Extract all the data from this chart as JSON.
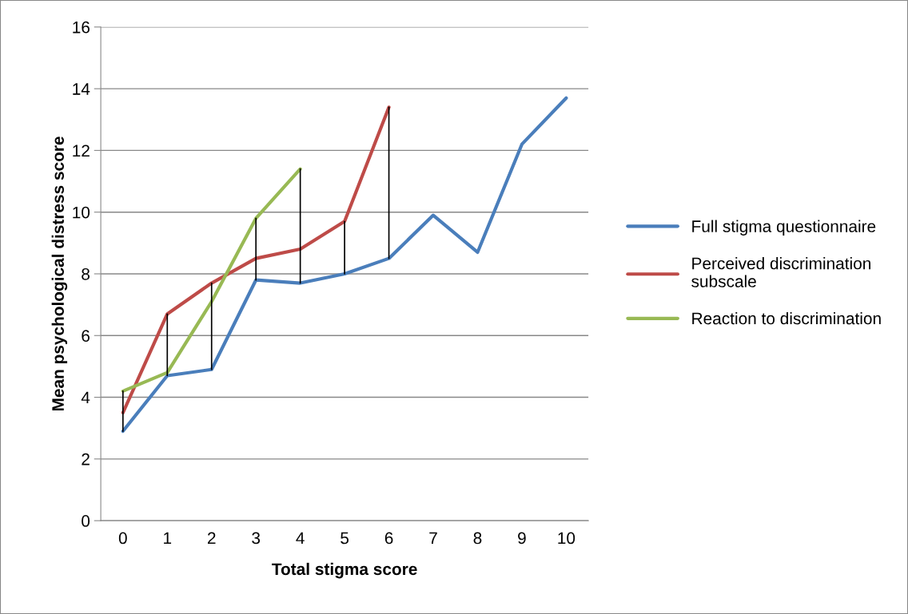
{
  "chart_data": {
    "type": "line",
    "xlabel": "Total stigma score",
    "ylabel": "Mean psychological distress score",
    "categories": [
      "0",
      "1",
      "2",
      "3",
      "4",
      "5",
      "6",
      "7",
      "8",
      "9",
      "10"
    ],
    "series": [
      {
        "name": "Full stigma questionnaire",
        "color": "#4a7ebb",
        "values": [
          2.9,
          4.7,
          4.9,
          7.8,
          7.7,
          8.0,
          8.5,
          9.9,
          8.7,
          12.2,
          13.7
        ]
      },
      {
        "name": "Perceived discrimination subscale",
        "color": "#be4b48",
        "values": [
          3.5,
          6.7,
          7.7,
          8.5,
          8.8,
          9.7,
          13.4,
          null,
          null,
          null,
          null
        ]
      },
      {
        "name": "Reaction to discrimination",
        "color": "#98b954",
        "values": [
          4.2,
          4.8,
          7.1,
          9.8,
          11.4,
          null,
          null,
          null,
          null,
          null,
          null
        ]
      },
      {
        "type": "line",
        "color": "#000000",
        "x": [
          "0",
          "0"
        ],
        "values": [
          2.9,
          4.2
        ]
      },
      {
        "type": "line",
        "color": "#000000",
        "x": [
          "1",
          "1"
        ],
        "values": [
          4.7,
          6.7
        ]
      },
      {
        "type": "line",
        "color": "#000000",
        "x": [
          "2",
          "2"
        ],
        "values": [
          4.9,
          7.7
        ]
      },
      {
        "type": "line",
        "color": "#000000",
        "x": [
          "3",
          "3"
        ],
        "values": [
          7.8,
          9.8
        ]
      },
      {
        "type": "line",
        "color": "#000000",
        "x": [
          "4",
          "4"
        ],
        "values": [
          7.7,
          11.4
        ]
      },
      {
        "type": "line",
        "color": "#000000",
        "x": [
          "5",
          "5"
        ],
        "values": [
          8.0,
          9.7
        ]
      },
      {
        "type": "line",
        "color": "#000000",
        "x": [
          "6",
          "6"
        ],
        "values": [
          8.5,
          13.4
        ]
      }
    ],
    "ylim": [
      0,
      16
    ],
    "yticks": [
      0,
      2,
      4,
      6,
      8,
      10,
      12,
      14,
      16
    ],
    "grid": "y",
    "legend": "right",
    "marker": "none",
    "line_style": "solid"
  }
}
